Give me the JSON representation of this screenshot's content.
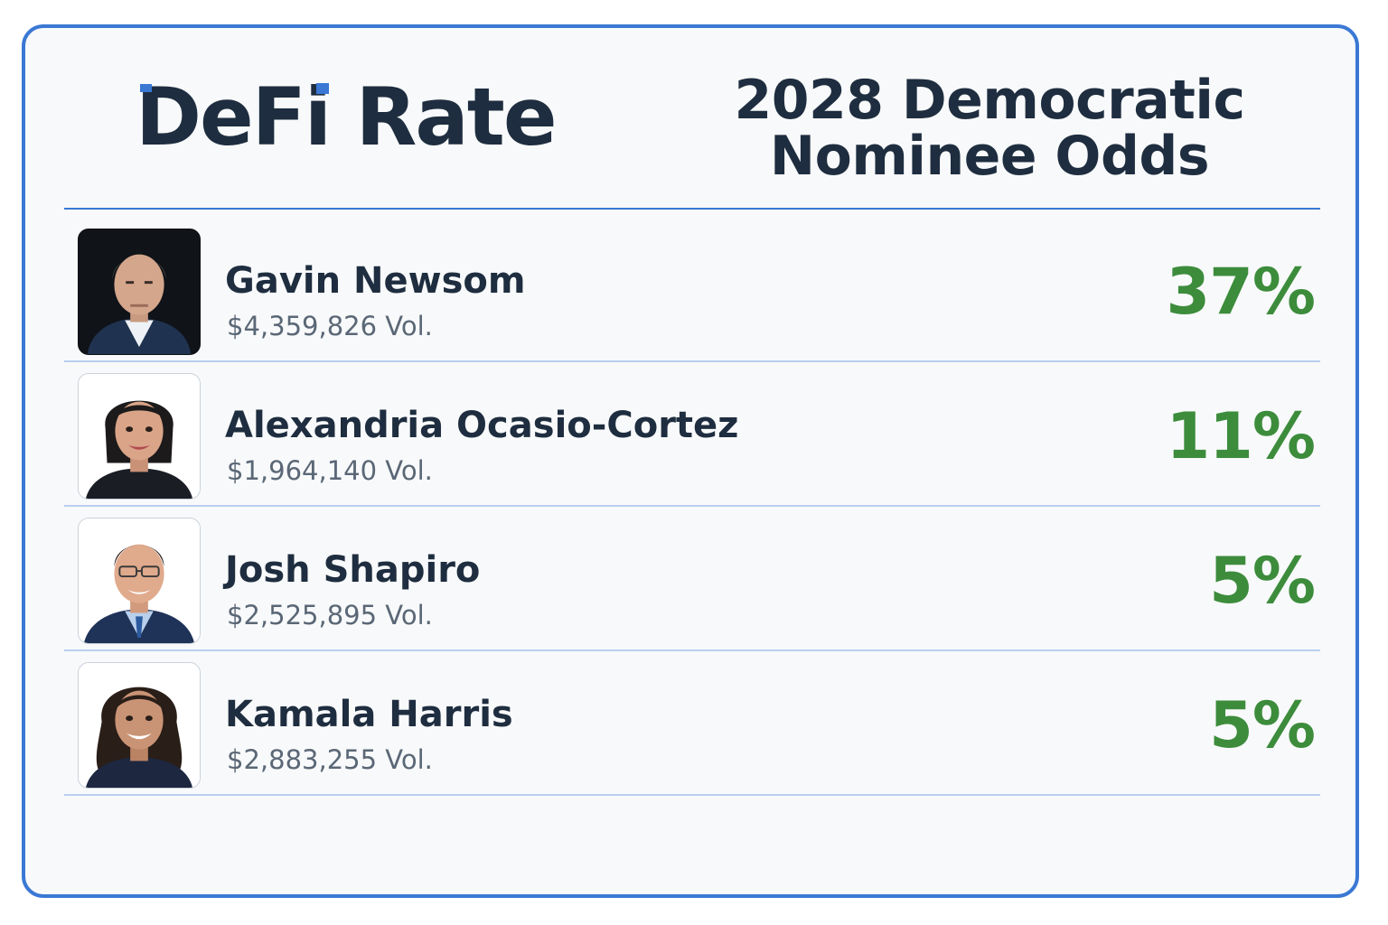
{
  "brand": {
    "name": "DeFi Rate",
    "accent": "#3a78d4"
  },
  "title": "2028 Democratic Nominee Odds",
  "colors": {
    "odds": "#3c8c3c",
    "text": "#1e2d3f",
    "muted": "#5a6776"
  },
  "candidates": [
    {
      "name": "Gavin Newsom",
      "volume": "$4,359,826 Vol.",
      "odds": "37%",
      "avatar": "portrait-man-dark-bg"
    },
    {
      "name": "Alexandria Ocasio-Cortez",
      "volume": "$1,964,140 Vol.",
      "odds": "11%",
      "avatar": "portrait-woman"
    },
    {
      "name": "Josh Shapiro",
      "volume": "$2,525,895 Vol.",
      "odds": "5%",
      "avatar": "portrait-man-glasses"
    },
    {
      "name": "Kamala Harris",
      "volume": "$2,883,255 Vol.",
      "odds": "5%",
      "avatar": "portrait-woman"
    }
  ]
}
